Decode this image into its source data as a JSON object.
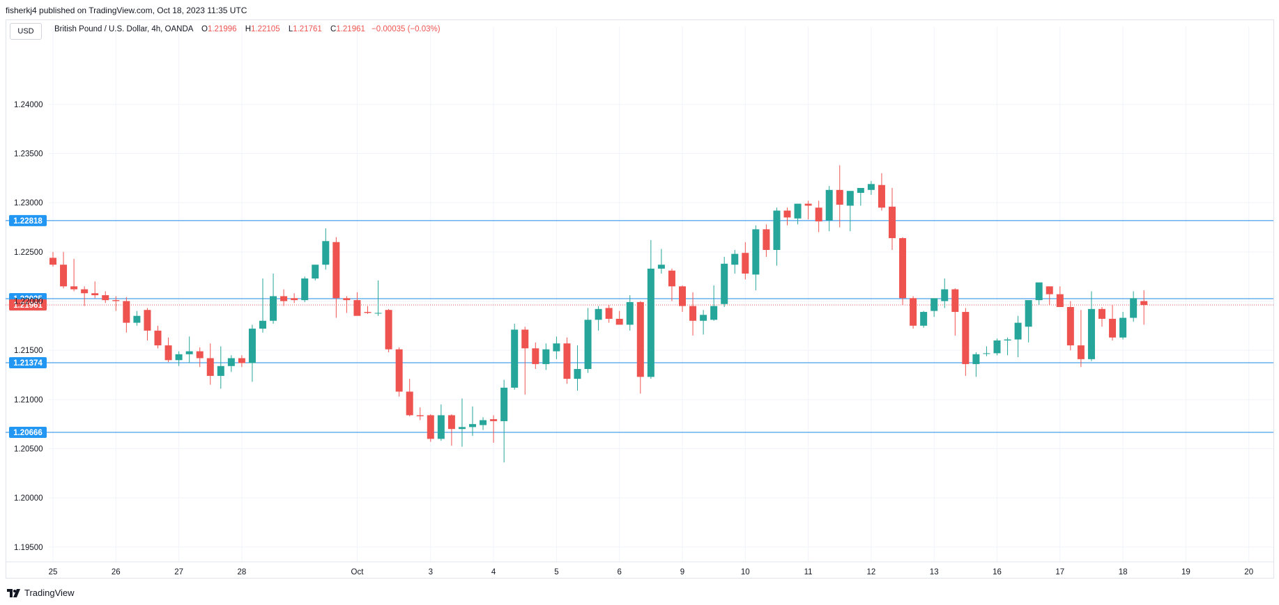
{
  "header": {
    "published_text": "fisherkj4 published on TradingView.com, Oct 18, 2023 11:35 UTC"
  },
  "toolbar": {
    "currency_label": "USD"
  },
  "legend": {
    "symbol": "British Pound / U.S. Dollar, 4h, OANDA",
    "open_label": "O",
    "open": "1.21996",
    "high_label": "H",
    "high": "1.22105",
    "low_label": "L",
    "low": "1.21761",
    "close_label": "C",
    "close": "1.21961",
    "change": "−0.00035 (−0.03%)"
  },
  "footer": {
    "brand": "TradingView"
  },
  "colors": {
    "up": "#26a69a",
    "down": "#ef5350",
    "hline": "#2962ff",
    "label_bg": "#2196f3",
    "grid": "#f0f3fa"
  },
  "chart_data": {
    "type": "candlestick",
    "ylim": [
      1.1935,
      1.2465
    ],
    "y_ticks": [
      "1.19500",
      "1.20000",
      "1.20500",
      "1.21000",
      "1.21500",
      "1.22000",
      "1.22500",
      "1.23000",
      "1.23500",
      "1.24000"
    ],
    "x_ticks": [
      {
        "label": "25",
        "i": 0
      },
      {
        "label": "26",
        "i": 6
      },
      {
        "label": "27",
        "i": 12
      },
      {
        "label": "28",
        "i": 18
      },
      {
        "label": "Oct",
        "i": 29
      },
      {
        "label": "3",
        "i": 36
      },
      {
        "label": "4",
        "i": 42
      },
      {
        "label": "5",
        "i": 48
      },
      {
        "label": "6",
        "i": 54
      },
      {
        "label": "9",
        "i": 60
      },
      {
        "label": "10",
        "i": 66
      },
      {
        "label": "11",
        "i": 72
      },
      {
        "label": "12",
        "i": 78
      },
      {
        "label": "13",
        "i": 84
      },
      {
        "label": "16",
        "i": 90
      },
      {
        "label": "17",
        "i": 96
      },
      {
        "label": "18",
        "i": 102
      },
      {
        "label": "19",
        "i": 108
      },
      {
        "label": "20",
        "i": 114
      }
    ],
    "x_range": [
      -0.2,
      114.5
    ],
    "horizontal_lines": [
      {
        "value": 1.22818,
        "label": "1.22818"
      },
      {
        "value": 1.22025,
        "label": "1.22025"
      },
      {
        "value": 1.21374,
        "label": "1.21374"
      },
      {
        "value": 1.20666,
        "label": "1.20666"
      }
    ],
    "last_price": {
      "value": 1.21961,
      "label": "1.21961"
    },
    "candles": [
      [
        1.2244,
        1.225,
        1.2235,
        1.2237
      ],
      [
        1.2237,
        1.225,
        1.2213,
        1.2215
      ],
      [
        1.2215,
        1.2243,
        1.221,
        1.2212
      ],
      [
        1.2212,
        1.2215,
        1.2195,
        1.2208
      ],
      [
        1.2208,
        1.222,
        1.2203,
        1.2206
      ],
      [
        1.2206,
        1.221,
        1.2198,
        1.2201
      ],
      [
        1.2201,
        1.2205,
        1.219,
        1.22
      ],
      [
        1.22,
        1.2204,
        1.2168,
        1.2178
      ],
      [
        1.2178,
        1.219,
        1.2175,
        1.2185
      ],
      [
        1.2191,
        1.2193,
        1.216,
        1.217
      ],
      [
        1.217,
        1.2175,
        1.2152,
        1.2155
      ],
      [
        1.2155,
        1.2163,
        1.2138,
        1.214
      ],
      [
        1.214,
        1.2149,
        1.2134,
        1.2146
      ],
      [
        1.2146,
        1.2164,
        1.2137,
        1.2149
      ],
      [
        1.2149,
        1.2153,
        1.2133,
        1.2142
      ],
      [
        1.2142,
        1.2157,
        1.2115,
        1.2124
      ],
      [
        1.2124,
        1.2154,
        1.2111,
        1.2134
      ],
      [
        1.2134,
        1.2145,
        1.2128,
        1.2142
      ],
      [
        1.2142,
        1.2145,
        1.2133,
        1.2137
      ],
      [
        1.2137,
        1.2176,
        1.2118,
        1.2172
      ],
      [
        1.2172,
        1.2223,
        1.2168,
        1.218
      ],
      [
        1.218,
        1.2228,
        1.2177,
        1.2205
      ],
      [
        1.2205,
        1.2212,
        1.2195,
        1.22
      ],
      [
        1.2203,
        1.2208,
        1.2198,
        1.2201
      ],
      [
        1.2201,
        1.2225,
        1.2199,
        1.2223
      ],
      [
        1.2223,
        1.2237,
        1.2221,
        1.2237
      ],
      [
        1.2237,
        1.2274,
        1.2232,
        1.2261
      ],
      [
        1.226,
        1.2265,
        1.2183,
        1.2203
      ],
      [
        1.2203,
        1.2205,
        1.2188,
        1.2201
      ],
      [
        1.2201,
        1.2209,
        1.2187,
        1.2185
      ],
      [
        1.2189,
        1.2195,
        1.2187,
        1.2188
      ],
      [
        1.2188,
        1.2221,
        1.2185,
        1.2188
      ],
      [
        1.2191,
        1.2192,
        1.2148,
        1.2151
      ],
      [
        1.2151,
        1.2153,
        1.2103,
        1.2108
      ],
      [
        1.2108,
        1.2121,
        1.2083,
        1.2084
      ],
      [
        1.2084,
        1.2092,
        1.2079,
        1.2083
      ],
      [
        1.2084,
        1.2085,
        1.2057,
        1.206
      ],
      [
        1.206,
        1.2095,
        1.2058,
        1.2084
      ],
      [
        1.2084,
        1.2085,
        1.2053,
        1.207
      ],
      [
        1.207,
        1.2101,
        1.2052,
        1.2072
      ],
      [
        1.2072,
        1.2093,
        1.2063,
        1.2075
      ],
      [
        1.2074,
        1.2082,
        1.2069,
        1.2079
      ],
      [
        1.208,
        1.2084,
        1.2056,
        1.2078
      ],
      [
        1.2078,
        1.212,
        1.2036,
        1.2112
      ],
      [
        1.2112,
        1.2177,
        1.211,
        1.2171
      ],
      [
        1.2171,
        1.2174,
        1.2105,
        1.2152
      ],
      [
        1.2152,
        1.2158,
        1.2131,
        1.2136
      ],
      [
        1.2136,
        1.2157,
        1.213,
        1.2151
      ],
      [
        1.2149,
        1.2164,
        1.2141,
        1.2157
      ],
      [
        1.2157,
        1.2163,
        1.2116,
        1.2121
      ],
      [
        1.2121,
        1.2155,
        1.2109,
        1.2131
      ],
      [
        1.2131,
        1.2193,
        1.2127,
        1.2181
      ],
      [
        1.2181,
        1.2195,
        1.217,
        1.2192
      ],
      [
        1.2193,
        1.2196,
        1.2178,
        1.2182
      ],
      [
        1.2182,
        1.219,
        1.2177,
        1.2176
      ],
      [
        1.2176,
        1.2206,
        1.217,
        1.2199
      ],
      [
        1.2199,
        1.22,
        1.2106,
        1.2123
      ],
      [
        1.2123,
        1.2262,
        1.2121,
        1.2233
      ],
      [
        1.2233,
        1.2253,
        1.2228,
        1.2237
      ],
      [
        1.2231,
        1.2233,
        1.22,
        1.2215
      ],
      [
        1.2215,
        1.2216,
        1.2189,
        1.2195
      ],
      [
        1.2195,
        1.2209,
        1.2165,
        1.218
      ],
      [
        1.218,
        1.2191,
        1.2166,
        1.2186
      ],
      [
        1.2181,
        1.2216,
        1.218,
        1.2195
      ],
      [
        1.2197,
        1.2245,
        1.2194,
        1.2238
      ],
      [
        1.2237,
        1.2252,
        1.2228,
        1.2248
      ],
      [
        1.2249,
        1.226,
        1.2222,
        1.2228
      ],
      [
        1.2227,
        1.2277,
        1.2211,
        1.2273
      ],
      [
        1.2273,
        1.2278,
        1.2245,
        1.2252
      ],
      [
        1.2252,
        1.2295,
        1.2236,
        1.2292
      ],
      [
        1.2292,
        1.2295,
        1.2277,
        1.2285
      ],
      [
        1.2284,
        1.2297,
        1.2278,
        1.2299
      ],
      [
        1.2299,
        1.2302,
        1.2283,
        1.2297
      ],
      [
        1.2295,
        1.2302,
        1.227,
        1.2281
      ],
      [
        1.2282,
        1.2317,
        1.2271,
        1.2313
      ],
      [
        1.2313,
        1.2338,
        1.2275,
        1.2298
      ],
      [
        1.2297,
        1.2311,
        1.2271,
        1.2312
      ],
      [
        1.231,
        1.2315,
        1.2297,
        1.2315
      ],
      [
        1.2313,
        1.2322,
        1.2308,
        1.2319
      ],
      [
        1.2318,
        1.233,
        1.2292,
        1.2295
      ],
      [
        1.2296,
        1.2315,
        1.2252,
        1.2264
      ],
      [
        1.2264,
        1.2265,
        1.2196,
        1.2203
      ],
      [
        1.2203,
        1.2205,
        1.2172,
        1.2175
      ],
      [
        1.2175,
        1.219,
        1.2173,
        1.2189
      ],
      [
        1.219,
        1.2198,
        1.2184,
        1.2203
      ],
      [
        1.22,
        1.2223,
        1.2193,
        1.2212
      ],
      [
        1.2212,
        1.2213,
        1.2165,
        1.2189
      ],
      [
        1.2189,
        1.2193,
        1.2124,
        1.2136
      ],
      [
        1.2136,
        1.2148,
        1.2123,
        1.2146
      ],
      [
        1.2147,
        1.2154,
        1.2144,
        1.2147
      ],
      [
        1.2147,
        1.2162,
        1.2145,
        1.216
      ],
      [
        1.216,
        1.2163,
        1.2145,
        1.2161
      ],
      [
        1.2161,
        1.2185,
        1.2143,
        1.2178
      ],
      [
        1.2174,
        1.2198,
        1.2158,
        1.2201
      ],
      [
        1.2201,
        1.2215,
        1.2196,
        1.2219
      ],
      [
        1.2215,
        1.221,
        1.2196,
        1.2207
      ],
      [
        1.2207,
        1.2215,
        1.2195,
        1.2194
      ],
      [
        1.2194,
        1.22,
        1.215,
        1.2155
      ],
      [
        1.2155,
        1.2191,
        1.2133,
        1.2141
      ],
      [
        1.2141,
        1.221,
        1.2139,
        1.2192
      ],
      [
        1.2192,
        1.2194,
        1.2174,
        1.2182
      ],
      [
        1.2182,
        1.2196,
        1.216,
        1.2163
      ],
      [
        1.2163,
        1.2189,
        1.2161,
        1.2183
      ],
      [
        1.2183,
        1.221,
        1.2179,
        1.2203
      ],
      [
        1.22,
        1.2211,
        1.2176,
        1.2196
      ]
    ]
  }
}
